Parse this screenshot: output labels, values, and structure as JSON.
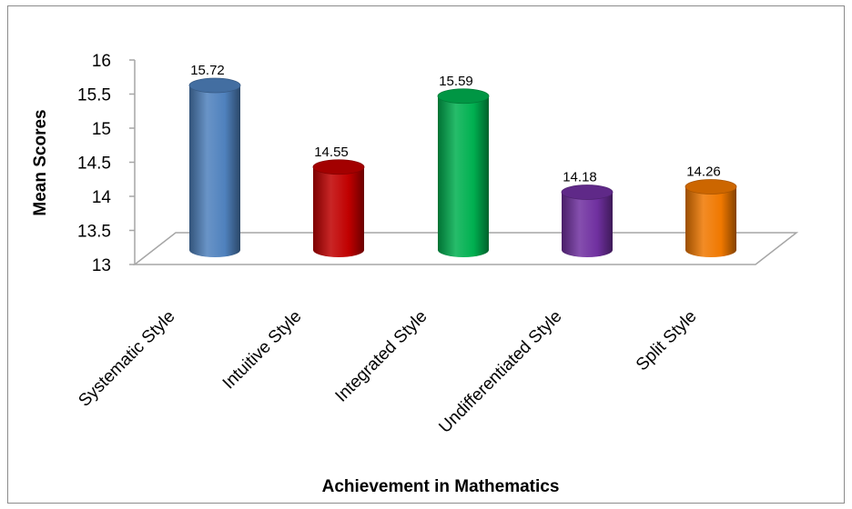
{
  "chart_data": {
    "type": "bar",
    "style": "3d-cylinder",
    "title": "",
    "xlabel": "Achievement in Mathematics",
    "ylabel": "Mean Scores",
    "ylim": [
      13,
      16
    ],
    "yticks": [
      "13",
      "13.5",
      "14",
      "14.5",
      "15",
      "15.5",
      "16"
    ],
    "grid": false,
    "legend": "none",
    "categories": [
      "Systematic Style",
      "Intuitive Style",
      "Integrated Style",
      "Undifferentiated Style",
      "Split Style"
    ],
    "values": [
      15.72,
      14.55,
      15.59,
      14.18,
      14.26
    ],
    "data_labels": [
      "15.72",
      "14.55",
      "15.59",
      "14.18",
      "14.26"
    ],
    "colors": [
      "#4f81bd",
      "#c00000",
      "#00b050",
      "#7030a0",
      "#f07800"
    ]
  }
}
